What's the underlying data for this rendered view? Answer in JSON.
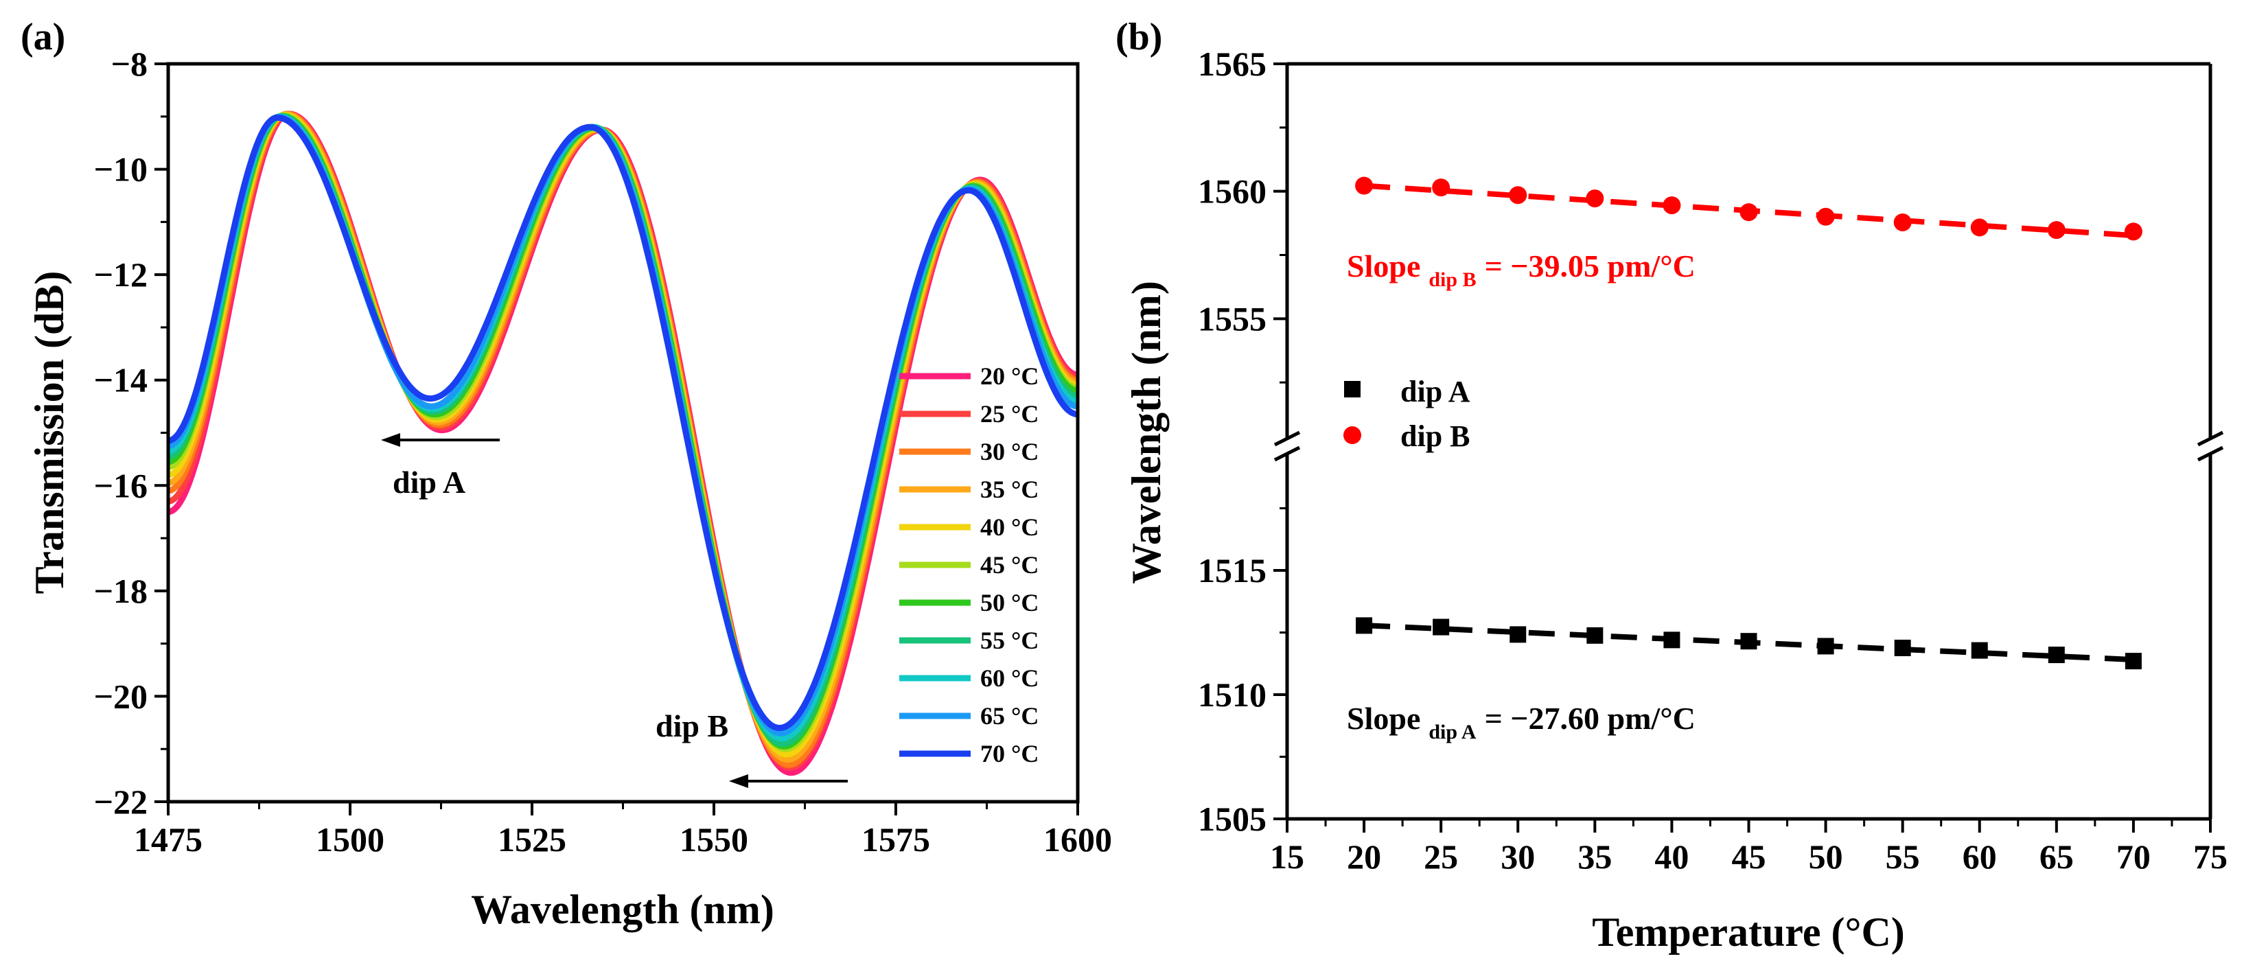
{
  "chart_data": [
    {
      "panel": "(a)",
      "type": "line",
      "xlabel": "Wavelength (nm)",
      "ylabel": "Transmission (dB)",
      "xlim": [
        1475,
        1600
      ],
      "ylim": [
        -22,
        -8
      ],
      "xticks": [
        1475,
        1500,
        1525,
        1550,
        1575,
        1600
      ],
      "yticks": [
        -22,
        -20,
        -18,
        -16,
        -14,
        -12,
        -10,
        -8
      ],
      "ytick_labels": [
        "−22",
        "−20",
        "−18",
        "−16",
        "−14",
        "−12",
        "−10",
        "−8"
      ],
      "x": [
        1475,
        1490,
        1511,
        1533,
        1559,
        1585,
        1600
      ],
      "series": [
        {
          "name": "20 °C",
          "color": "#ff1f7a",
          "values": [
            -16.5,
            -8.95,
            -14.95,
            -9.25,
            -21.45,
            -10.2,
            -13.9
          ]
        },
        {
          "name": "25 °C",
          "color": "#ff4040",
          "values": [
            -16.3,
            -8.95,
            -14.9,
            -9.25,
            -21.35,
            -10.22,
            -13.95
          ]
        },
        {
          "name": "30 °C",
          "color": "#ff7a1a",
          "values": [
            -16.1,
            -8.95,
            -14.85,
            -9.25,
            -21.3,
            -10.24,
            -14.0
          ]
        },
        {
          "name": "35 °C",
          "color": "#ffa81a",
          "values": [
            -15.95,
            -8.96,
            -14.8,
            -9.24,
            -21.2,
            -10.26,
            -14.05
          ]
        },
        {
          "name": "40 °C",
          "color": "#f2d40c",
          "values": [
            -15.8,
            -8.97,
            -14.75,
            -9.23,
            -21.1,
            -10.28,
            -14.1
          ]
        },
        {
          "name": "45 °C",
          "color": "#a6dc1c",
          "values": [
            -15.65,
            -8.98,
            -14.7,
            -9.22,
            -21.0,
            -10.3,
            -14.15
          ]
        },
        {
          "name": "50 °C",
          "color": "#2fc81e",
          "values": [
            -15.55,
            -8.99,
            -14.65,
            -9.21,
            -20.95,
            -10.32,
            -14.2
          ]
        },
        {
          "name": "55 °C",
          "color": "#17c27a",
          "values": [
            -15.45,
            -9.0,
            -14.6,
            -9.2,
            -20.9,
            -10.34,
            -14.3
          ]
        },
        {
          "name": "60 °C",
          "color": "#12c9c6",
          "values": [
            -15.35,
            -9.0,
            -14.55,
            -9.2,
            -20.8,
            -10.36,
            -14.4
          ]
        },
        {
          "name": "65 °C",
          "color": "#1b9af5",
          "values": [
            -15.25,
            -9.01,
            -14.5,
            -9.2,
            -20.7,
            -10.38,
            -14.5
          ]
        },
        {
          "name": "70 °C",
          "color": "#1a3ff0",
          "values": [
            -15.15,
            -9.02,
            -14.35,
            -9.2,
            -20.6,
            -10.4,
            -14.65
          ]
        }
      ],
      "dip_wavelengths": {
        "dip A": [
          1512.6,
          1511.2
        ],
        "dip B": [
          1560.2,
          1558.4
        ]
      },
      "annotations": [
        {
          "text": "dip A",
          "arrow": "left",
          "near_x": 1512,
          "near_y": -15.2
        },
        {
          "text": "dip B",
          "arrow": "left",
          "near_x": 1559,
          "near_y": -21.6
        }
      ]
    },
    {
      "panel": "(b)",
      "type": "scatter",
      "xlabel": "Temperature (°C)",
      "ylabel": "Wavelength (nm)",
      "xlim": [
        15,
        75
      ],
      "xticks": [
        15,
        20,
        25,
        30,
        35,
        40,
        45,
        50,
        55,
        60,
        65,
        70,
        75
      ],
      "axis_break": true,
      "ylim_lower": [
        1505,
        1520
      ],
      "ylim_upper": [
        1550,
        1565
      ],
      "yticks": [
        1505,
        1510,
        1515,
        1555,
        1560,
        1565
      ],
      "x": [
        20,
        25,
        30,
        35,
        40,
        45,
        50,
        55,
        60,
        65,
        70
      ],
      "series": [
        {
          "name": "dip A",
          "marker": "square",
          "color": "#000000",
          "values": [
            1512.78,
            1512.72,
            1512.42,
            1512.38,
            1512.2,
            1512.15,
            1511.95,
            1511.88,
            1511.78,
            1511.6,
            1511.35
          ],
          "fit": {
            "slope_pm_per_C": -27.6,
            "intercept_nm": 1513.34
          },
          "slope_label": {
            "main": "Slope",
            "sub": "dip A",
            "value": "= −27.60 pm/°C"
          }
        },
        {
          "name": "dip B",
          "marker": "circle",
          "color": "#ff0000",
          "values": [
            1560.22,
            1560.15,
            1559.85,
            1559.72,
            1559.45,
            1559.18,
            1559.0,
            1558.78,
            1558.58,
            1558.48,
            1558.42
          ],
          "fit": {
            "slope_pm_per_C": -39.05,
            "intercept_nm": 1561.0
          },
          "slope_label": {
            "main": "Slope",
            "sub": "dip B",
            "value": "= −39.05 pm/°C"
          }
        }
      ]
    }
  ]
}
